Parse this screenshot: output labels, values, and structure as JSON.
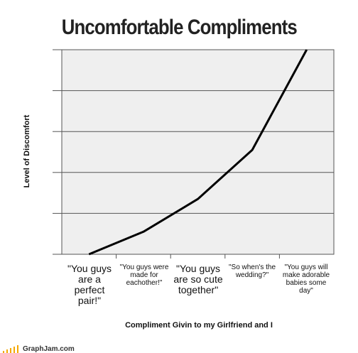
{
  "chart_data": {
    "type": "line",
    "title": "Uncomfortable Compliments",
    "xlabel": "Compliment Givin to my Girlfriend and I",
    "ylabel": "Level of Discomfort",
    "categories": [
      "\"You guys are a perfect pair!\"",
      "\"You guys were made for eachother!\"",
      "\"You guys are so cute together\"",
      "\"So when's the wedding?\"",
      "\"You guys will make adorable babies some day\""
    ],
    "values": [
      0.0,
      0.55,
      1.35,
      2.55,
      5.0
    ],
    "ylim": [
      0,
      5
    ],
    "yticks": [
      0,
      1,
      2,
      3,
      4,
      5
    ],
    "grid": true,
    "colors": {
      "line": "#000000",
      "plot_bg": "#efefef",
      "grid": "#555555"
    }
  },
  "footer": {
    "site": "GraphJam.com",
    "bar_color": "#f5a800"
  }
}
